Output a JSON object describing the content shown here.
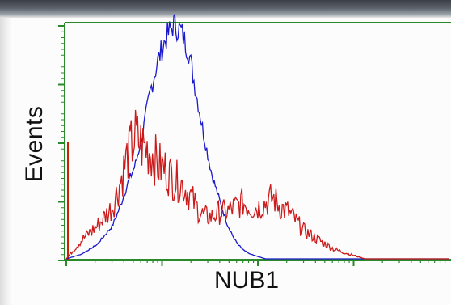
{
  "chart_data": {
    "type": "area",
    "xlabel": "NUB1",
    "ylabel": "Events",
    "xlim": [
      0,
      100
    ],
    "ylim": [
      0,
      100
    ],
    "grid": false,
    "series": [
      {
        "color": "#1a1acc",
        "x": [
          0,
          4,
          8,
          12,
          14,
          16,
          18,
          20,
          22,
          24,
          26,
          28,
          30,
          32,
          34,
          36,
          38,
          40,
          42,
          44,
          46,
          48,
          50,
          52,
          54,
          56,
          58,
          60,
          62,
          64,
          66,
          68,
          70,
          74,
          80,
          90,
          100
        ],
        "y": [
          0,
          2,
          6,
          14,
          22,
          32,
          40,
          54,
          72,
          85,
          94,
          100,
          97,
          88,
          70,
          52,
          36,
          25,
          15,
          8,
          4,
          2,
          1,
          0,
          0,
          0,
          0,
          0,
          0,
          0,
          0,
          0,
          0,
          0,
          0,
          0,
          0
        ]
      },
      {
        "color": "#cc1a1a",
        "x": [
          0,
          4,
          8,
          12,
          14,
          16,
          18,
          20,
          22,
          24,
          26,
          28,
          30,
          32,
          34,
          36,
          38,
          40,
          42,
          44,
          46,
          48,
          50,
          52,
          54,
          56,
          58,
          60,
          62,
          64,
          66,
          68,
          70,
          72,
          74,
          76,
          78,
          80,
          84,
          90,
          100
        ],
        "y": [
          0,
          8,
          14,
          22,
          32,
          44,
          52,
          48,
          46,
          40,
          38,
          34,
          32,
          28,
          22,
          18,
          18,
          20,
          20,
          22,
          24,
          22,
          22,
          24,
          26,
          22,
          20,
          16,
          12,
          10,
          8,
          6,
          4,
          3,
          2,
          1,
          0,
          0,
          0,
          0,
          0
        ]
      }
    ]
  }
}
